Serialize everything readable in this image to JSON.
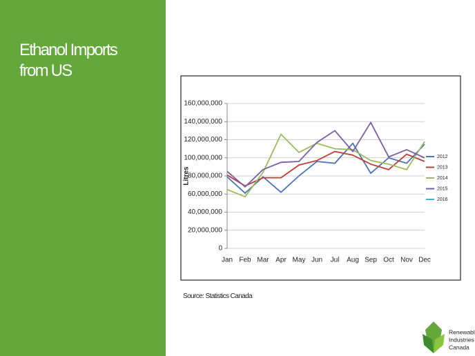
{
  "slide": {
    "title": "Ethanol Imports from US",
    "source": "Source: Statistics Canada",
    "logo": [
      "Renewable",
      "Industries",
      "Canada"
    ]
  },
  "chart_data": {
    "type": "line",
    "y_label": "Litres",
    "categories": [
      "Jan",
      "Feb",
      "Mar",
      "Apr",
      "May",
      "Jun",
      "Jul",
      "Aug",
      "Sep",
      "Oct",
      "Nov",
      "Dec"
    ],
    "series": [
      {
        "name": "2012",
        "color": "#4a72b8",
        "values": [
          79000000,
          61000000,
          79000000,
          62000000,
          80000000,
          96000000,
          94000000,
          116000000,
          83000000,
          100000000,
          94000000,
          115000000
        ]
      },
      {
        "name": "2013",
        "color": "#be3b38",
        "values": [
          81000000,
          69000000,
          78000000,
          78000000,
          92000000,
          97000000,
          107000000,
          103000000,
          93000000,
          87000000,
          104000000,
          96000000
        ]
      },
      {
        "name": "2014",
        "color": "#9bbb59",
        "values": [
          65000000,
          57000000,
          84000000,
          126000000,
          106000000,
          116000000,
          110000000,
          109000000,
          97000000,
          93000000,
          87000000,
          118000000
        ]
      },
      {
        "name": "2015",
        "color": "#7c5ca6",
        "values": [
          85000000,
          68000000,
          87000000,
          95000000,
          96000000,
          117000000,
          130000000,
          107000000,
          139000000,
          101000000,
          109000000,
          100000000
        ]
      },
      {
        "name": "2016",
        "color": "#4bacc6",
        "values": [
          null,
          null,
          null,
          null,
          null,
          null,
          null,
          null,
          null,
          null,
          null,
          null
        ]
      }
    ],
    "ylim": [
      0,
      160000000
    ],
    "yticks": [
      0,
      {
        "value": 20000000,
        "label": "20,000,000"
      },
      {
        "value": 40000000,
        "label": "40,000,000"
      },
      {
        "value": 60000000,
        "label": "60,000,000"
      },
      {
        "value": 80000000,
        "label": "80,000,000"
      },
      {
        "value": 100000000,
        "label": "100,000,000"
      },
      {
        "value": 120000000,
        "label": "120,000,000"
      },
      {
        "value": 140000000,
        "label": "140,000,000"
      },
      {
        "value": 160000000,
        "label": "160,000,000"
      }
    ],
    "grid": true,
    "legend": "right"
  }
}
